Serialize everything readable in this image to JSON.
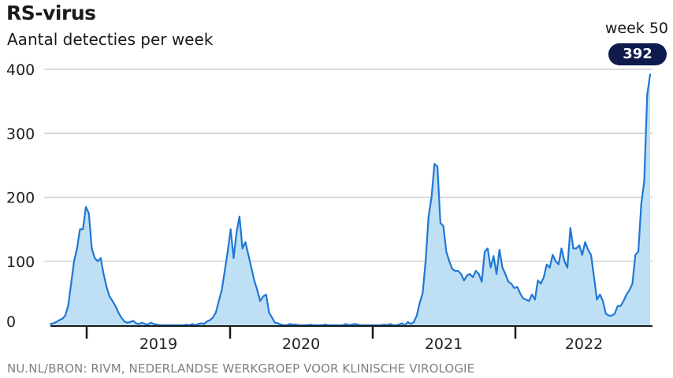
{
  "header": {
    "title": "RS-virus",
    "subtitle": "Aantal detecties per week"
  },
  "annotation": {
    "label": "week 50",
    "value": "392"
  },
  "footer": {
    "source": "NU.NL/BRON: RIVM, NEDERLANDSE WERKGROEP VOOR KLINISCHE VIROLOGIE"
  },
  "colors": {
    "line": "#1f77d4",
    "fill": "#bfdff4",
    "grid": "#d0d0d0",
    "badge": "#0f1b4d"
  },
  "chart_data": {
    "type": "area",
    "title": "RS-virus",
    "subtitle": "Aantal detecties per week",
    "xlabel": "",
    "ylabel": "",
    "ylim": [
      0,
      400
    ],
    "yticks": [
      0,
      100,
      200,
      300,
      400
    ],
    "year_labels": [
      "2019",
      "2020",
      "2021",
      "2022"
    ],
    "grid": true,
    "x_start": "2018 week 27",
    "x_end": "2022 week 50",
    "series": [
      {
        "values": [
          2,
          3,
          5,
          8,
          10,
          15,
          30,
          65,
          100,
          120,
          150,
          150,
          185,
          175,
          120,
          105,
          100,
          105,
          80,
          60,
          45,
          38,
          30,
          20,
          12,
          6,
          4,
          5,
          7,
          3,
          2,
          4,
          2,
          1,
          4,
          2,
          1,
          0,
          0,
          0,
          0,
          0,
          0,
          0,
          0,
          0,
          1,
          0,
          2,
          0,
          2,
          3,
          2,
          6,
          8,
          12,
          20,
          38,
          55,
          85,
          115,
          150,
          105,
          145,
          170,
          120,
          130,
          110,
          90,
          70,
          55,
          38,
          45,
          48,
          20,
          12,
          4,
          3,
          1,
          0,
          0,
          2,
          1,
          1,
          0,
          0,
          0,
          0,
          1,
          0,
          0,
          0,
          0,
          1,
          0,
          0,
          0,
          0,
          0,
          0,
          2,
          0,
          1,
          2,
          1,
          0,
          0,
          0,
          0,
          0,
          0,
          0,
          0,
          1,
          0,
          2,
          0,
          0,
          1,
          3,
          0,
          5,
          2,
          5,
          15,
          35,
          50,
          100,
          170,
          200,
          252,
          248,
          160,
          155,
          115,
          100,
          88,
          85,
          85,
          80,
          70,
          78,
          80,
          75,
          85,
          80,
          68,
          115,
          120,
          90,
          108,
          80,
          118,
          90,
          80,
          68,
          65,
          58,
          60,
          50,
          42,
          40,
          38,
          48,
          40,
          70,
          65,
          75,
          95,
          90,
          110,
          100,
          95,
          120,
          100,
          90,
          152,
          120,
          120,
          125,
          110,
          130,
          118,
          110,
          75,
          40,
          48,
          38,
          18,
          15,
          15,
          18,
          30,
          30,
          38,
          48,
          55,
          65,
          110,
          115,
          190,
          225,
          360,
          392
        ]
      }
    ]
  }
}
